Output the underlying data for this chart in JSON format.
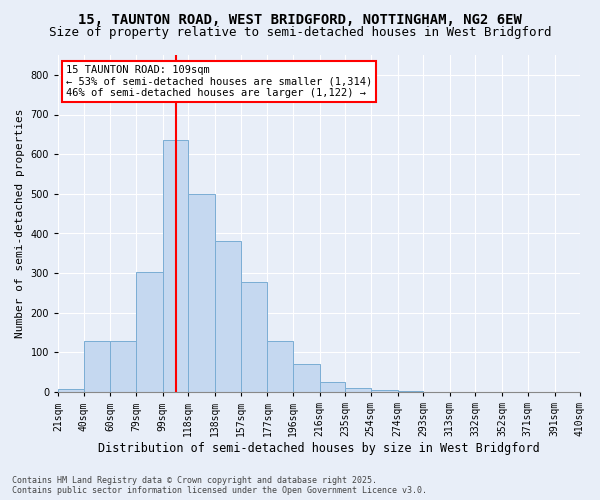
{
  "title1": "15, TAUNTON ROAD, WEST BRIDGFORD, NOTTINGHAM, NG2 6EW",
  "title2": "Size of property relative to semi-detached houses in West Bridgford",
  "xlabel": "Distribution of semi-detached houses by size in West Bridgford",
  "ylabel": "Number of semi-detached properties",
  "property_label": "15 TAUNTON ROAD: 109sqm",
  "smaller_pct": 53,
  "smaller_n": "1,314",
  "larger_pct": 46,
  "larger_n": "1,122",
  "bin_edges": [
    21,
    40,
    60,
    79,
    99,
    118,
    138,
    157,
    177,
    196,
    216,
    235,
    254,
    274,
    293,
    313,
    332,
    352,
    371,
    391,
    410
  ],
  "bin_labels": [
    "21sqm",
    "40sqm",
    "60sqm",
    "79sqm",
    "99sqm",
    "118sqm",
    "138sqm",
    "157sqm",
    "177sqm",
    "196sqm",
    "216sqm",
    "235sqm",
    "254sqm",
    "274sqm",
    "293sqm",
    "313sqm",
    "332sqm",
    "352sqm",
    "371sqm",
    "391sqm",
    "410sqm"
  ],
  "bar_heights": [
    8,
    128,
    128,
    302,
    635,
    500,
    382,
    278,
    130,
    70,
    25,
    10,
    5,
    2,
    1,
    0,
    0,
    0,
    0,
    0
  ],
  "bar_color": "#c5d8f0",
  "bar_edgecolor": "#7aadd4",
  "vline_color": "red",
  "vline_x": 109,
  "annotation_fontsize": 7.5,
  "title1_fontsize": 10,
  "title2_fontsize": 9,
  "xlabel_fontsize": 8.5,
  "ylabel_fontsize": 8,
  "tick_fontsize": 7,
  "ylim": [
    0,
    850
  ],
  "yticks": [
    0,
    100,
    200,
    300,
    400,
    500,
    600,
    700,
    800
  ],
  "footer1": "Contains HM Land Registry data © Crown copyright and database right 2025.",
  "footer2": "Contains public sector information licensed under the Open Government Licence v3.0.",
  "background_color": "#e8eef8",
  "plot_background": "#e8eef8"
}
